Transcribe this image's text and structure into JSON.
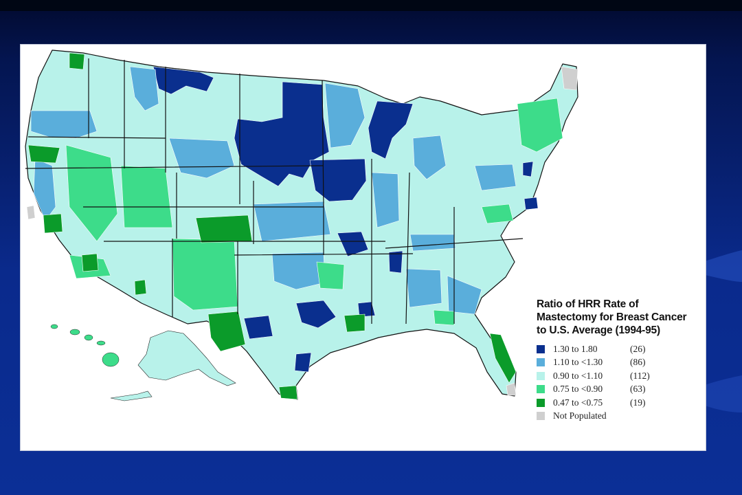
{
  "slide": {
    "background": "#0b2f96"
  },
  "legend": {
    "title_lines": [
      "Ratio of HRR Rate of",
      "Mastectomy for Breast Cancer",
      "to U.S. Average (1994-95)"
    ],
    "items": [
      {
        "range": "1.30 to  1.80",
        "count": "(26)",
        "color": "#0a2f8e"
      },
      {
        "range": "1.10 to <1.30",
        "count": "(86)",
        "color": "#5aaedb"
      },
      {
        "range": "0.90 to <1.10",
        "count": "(112)",
        "color": "#b8f2ea"
      },
      {
        "range": "0.75 to <0.90",
        "count": "(63)",
        "color": "#3ddc8a"
      },
      {
        "range": "0.47 to <0.75",
        "count": "(19)",
        "color": "#0b9b2a"
      },
      {
        "range": "Not Populated",
        "count": "",
        "color": "#cfcfcf"
      }
    ]
  },
  "map": {
    "category_colors": {
      "very_high": "#0a2f8e",
      "high": "#5aaedb",
      "average": "#b8f2ea",
      "low": "#3ddc8a",
      "very_low": "#0b9b2a",
      "not_populated": "#cfcfcf"
    }
  }
}
